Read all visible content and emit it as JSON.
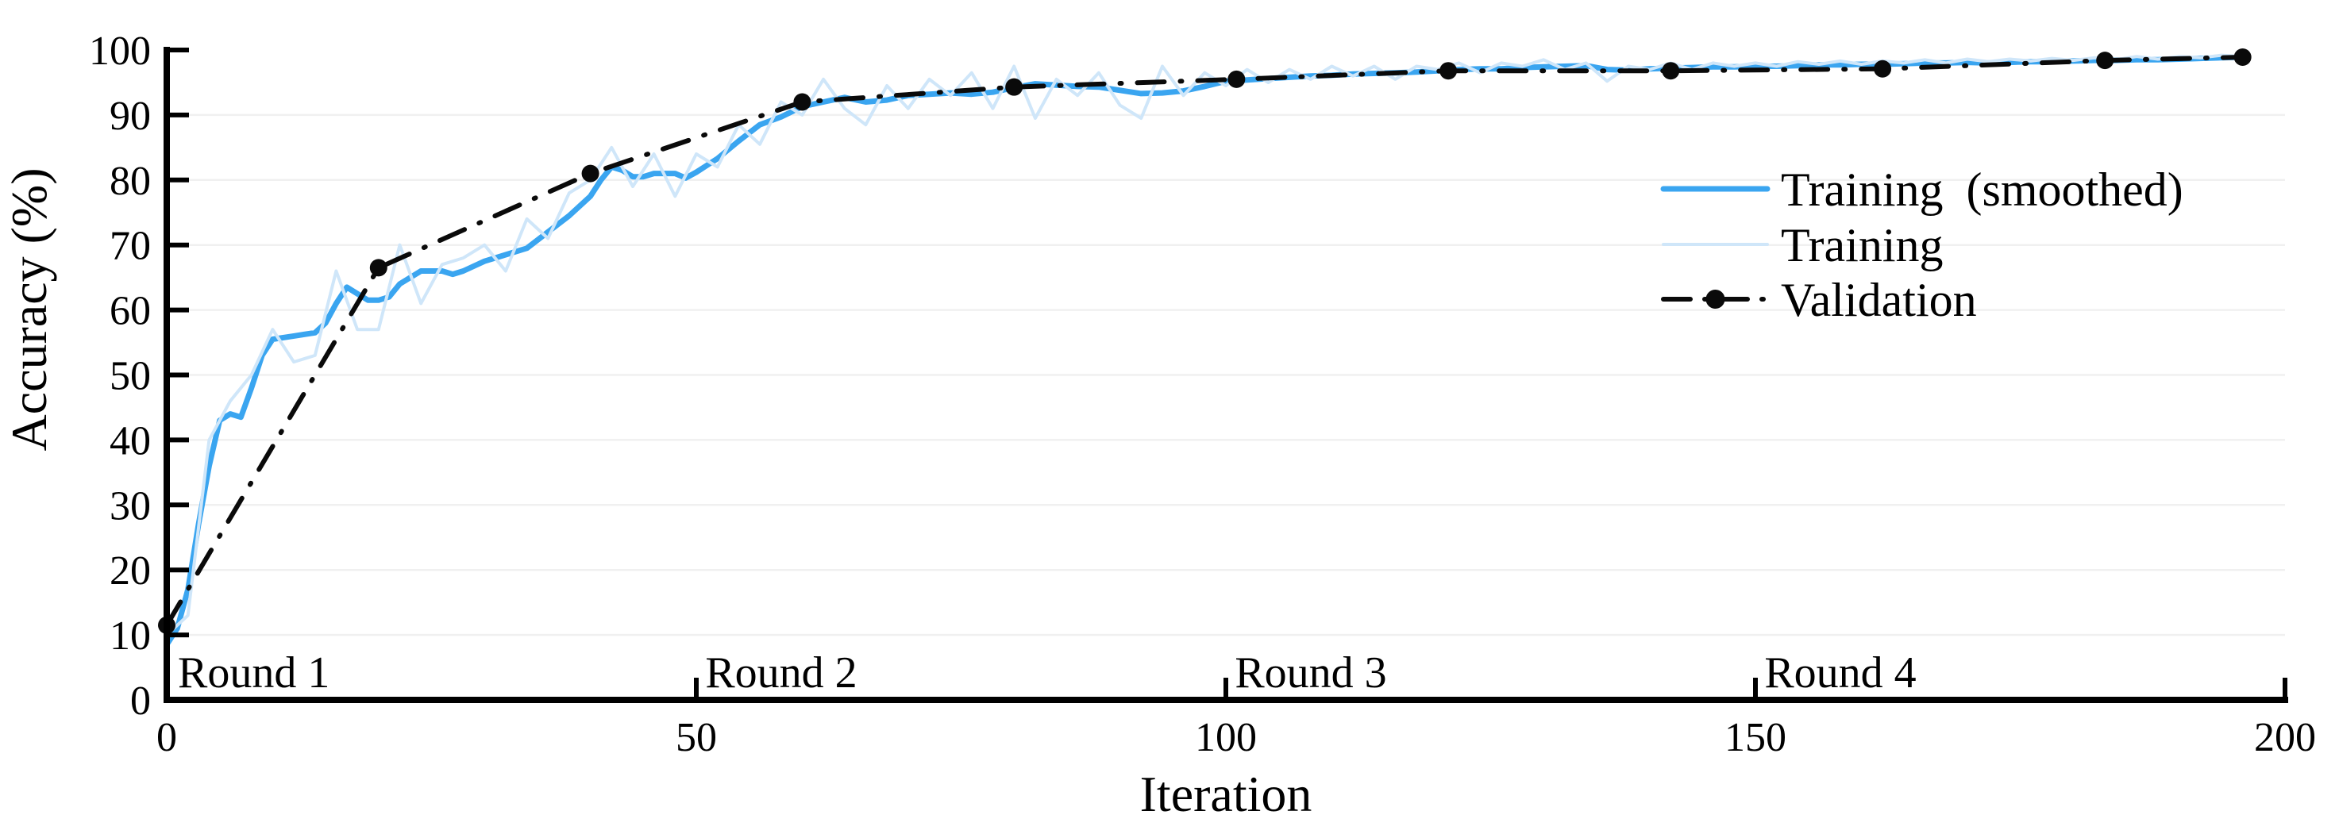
{
  "figure": {
    "background": "#ffffff",
    "xlabel": "Iteration",
    "ylabel": "Accuracy (%)"
  },
  "chart_data": {
    "type": "line",
    "title": "",
    "xlabel": "Iteration",
    "ylabel": "Accuracy (%)",
    "xlim": [
      0,
      200
    ],
    "ylim": [
      0,
      100
    ],
    "x_ticks": [
      0,
      50,
      100,
      150,
      200
    ],
    "y_ticks": [
      0,
      10,
      20,
      30,
      40,
      50,
      60,
      70,
      80,
      90,
      100
    ],
    "grid": "horizontal",
    "grid_color": "#f0f0f0",
    "axis_color": "#000000",
    "legend_position": "upper-right",
    "annotations": [
      {
        "label": "Round 1",
        "x": 0.6
      },
      {
        "label": "Round 2",
        "x": 50.4
      },
      {
        "label": "Round 3",
        "x": 100.4
      },
      {
        "label": "Round 4",
        "x": 150.4
      }
    ],
    "series": [
      {
        "name": "Training (smoothed)",
        "color": "#3aa5f0",
        "style": "solid",
        "width": 7,
        "x": [
          0,
          1,
          2,
          3,
          4,
          5,
          6,
          7,
          8,
          9,
          10,
          12,
          14,
          15,
          16,
          17,
          18,
          19,
          20,
          21,
          22,
          24,
          26,
          27,
          28,
          30,
          32,
          34,
          36,
          38,
          40,
          41,
          42,
          43,
          44,
          45,
          46,
          48,
          49,
          50,
          52,
          54,
          56,
          58,
          60,
          62,
          64,
          66,
          68,
          70,
          72,
          74,
          76,
          78,
          80,
          82,
          84,
          86,
          88,
          90,
          92,
          94,
          96,
          98,
          100,
          102,
          104,
          106,
          108,
          110,
          112,
          114,
          116,
          118,
          120,
          122,
          124,
          126,
          128,
          130,
          132,
          134,
          136,
          138,
          140,
          142,
          144,
          146,
          148,
          150,
          152,
          154,
          156,
          158,
          160,
          162,
          164,
          166,
          168,
          170,
          172,
          174,
          176,
          178,
          180,
          182,
          184,
          186,
          188,
          190,
          192,
          194,
          196
        ],
        "y": [
          8.5,
          11,
          17,
          27,
          36,
          43,
          44,
          43.5,
          48,
          53,
          55.5,
          56,
          56.5,
          58,
          61,
          63.5,
          62.5,
          61.5,
          61.5,
          62,
          64,
          66,
          66,
          65.5,
          66,
          67.5,
          68.5,
          69.5,
          72,
          74.5,
          77.5,
          80,
          82,
          81.5,
          80.5,
          80.5,
          81,
          81,
          80.3,
          81.2,
          83.3,
          86,
          88.5,
          89.7,
          91.3,
          92,
          92.7,
          92,
          92.3,
          93,
          93.2,
          93.4,
          93.2,
          93.5,
          94.2,
          94.8,
          94.6,
          94.4,
          94.3,
          93.8,
          93.3,
          93.4,
          93.7,
          94.4,
          95.2,
          95.4,
          95.6,
          95.8,
          96,
          96.1,
          96.3,
          96.4,
          96.5,
          96.6,
          96.8,
          97,
          97.1,
          97.1,
          97.3,
          97.4,
          97.5,
          97.6,
          97,
          96.9,
          97.1,
          97.2,
          97.3,
          97.4,
          97.4,
          97.5,
          97.5,
          97.6,
          97.7,
          97.7,
          97.8,
          97.8,
          97.9,
          98,
          98,
          98.1,
          98,
          98.1,
          98.2,
          98.2,
          98.3,
          98.4,
          98.4,
          98.5,
          98.5,
          98.6,
          98.7,
          98.8,
          98.9
        ]
      },
      {
        "name": "Training",
        "color": "#cfe6f9",
        "style": "solid",
        "width": 4,
        "x": [
          0,
          2,
          4,
          6,
          8,
          10,
          12,
          14,
          16,
          18,
          20,
          22,
          24,
          26,
          28,
          30,
          32,
          34,
          36,
          38,
          40,
          42,
          44,
          46,
          48,
          50,
          52,
          54,
          56,
          58,
          60,
          62,
          64,
          66,
          68,
          70,
          72,
          74,
          76,
          78,
          80,
          82,
          84,
          86,
          88,
          90,
          92,
          94,
          96,
          98,
          100,
          102,
          104,
          106,
          108,
          110,
          112,
          114,
          116,
          118,
          120,
          122,
          124,
          126,
          128,
          130,
          132,
          134,
          136,
          138,
          140,
          142,
          144,
          146,
          148,
          150,
          152,
          154,
          156,
          158,
          160,
          162,
          164,
          166,
          168,
          170,
          172,
          174,
          176,
          178,
          180,
          182,
          184,
          186,
          188,
          190,
          192,
          194,
          196
        ],
        "y": [
          10,
          13,
          40,
          46,
          50,
          57,
          52,
          53,
          66,
          57,
          57,
          70,
          61,
          67,
          68,
          70,
          66,
          74,
          71,
          78,
          80,
          85,
          79,
          84,
          77.5,
          84,
          82,
          88.5,
          85.5,
          92,
          90,
          95.5,
          91,
          88.5,
          94.5,
          91,
          95.5,
          93,
          96.5,
          91,
          97.5,
          89.5,
          95.5,
          93,
          96.5,
          91.5,
          89.5,
          97.5,
          93,
          96.5,
          94.5,
          97,
          95,
          97,
          95.5,
          97.5,
          96,
          97.5,
          95.5,
          97.5,
          97,
          98,
          96.5,
          98,
          97.5,
          98.5,
          97,
          98,
          95.2,
          97.5,
          97,
          98,
          97,
          98,
          97.5,
          98,
          97.5,
          98.2,
          97.8,
          98.3,
          97.8,
          98.3,
          98,
          98.5,
          98,
          98.6,
          98.2,
          98.6,
          98.3,
          98.7,
          98.4,
          98.8,
          98.5,
          99,
          98.6,
          99,
          98.8,
          99.2,
          99
        ]
      },
      {
        "name": "Validation",
        "color": "#0a0a0a",
        "style": "dashdot",
        "width": 6,
        "marker": "circle",
        "marker_size": 11,
        "x": [
          0,
          20,
          40,
          60,
          80,
          101,
          121,
          142,
          162,
          183,
          196
        ],
        "y": [
          11.5,
          66.5,
          81,
          92,
          94.3,
          95.5,
          96.8,
          96.8,
          97.1,
          98.4,
          98.9
        ]
      }
    ]
  }
}
